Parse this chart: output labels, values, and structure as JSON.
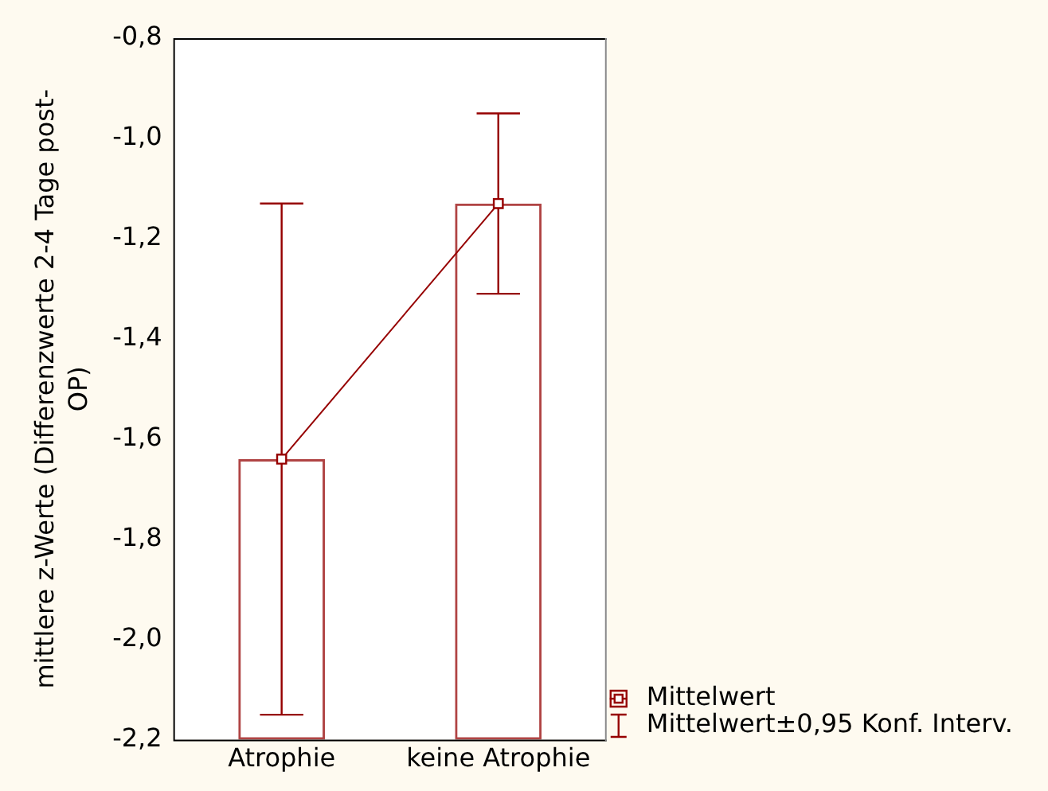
{
  "chart_data": {
    "type": "bar",
    "ylabel": "mittlere z-Werte (Differenzwerte 2-4 Tage post-OP)",
    "categories": [
      "Atrophie",
      "keine Atrophie"
    ],
    "series": [
      {
        "type": "line",
        "name": "Mittelwert",
        "color": "#960000",
        "values": [
          -1.64,
          -1.13
        ],
        "marker": "none"
      },
      {
        "type": "scatter",
        "name": "Mittelwert±0,95 Konf. Interv.",
        "color": "#960000",
        "values": [
          -1.64,
          -1.13
        ],
        "errors": [
          0.51,
          0.18
        ],
        "marker": "square"
      },
      {
        "type": "bar",
        "color": "#b04444",
        "values": [
          0.56,
          1.07
        ],
        "base": [
          -2.2,
          -2.2
        ]
      }
    ],
    "ylim": [
      -2.2,
      -0.8
    ],
    "yticks": [
      {
        "value": -2.2,
        "label": "-2,2"
      },
      {
        "value": -2.0,
        "label": "-2,0"
      },
      {
        "value": -1.8,
        "label": "-1,8"
      },
      {
        "value": -1.6,
        "label": "-1,6"
      },
      {
        "value": -1.4,
        "label": "-1,4"
      },
      {
        "value": -1.2,
        "label": "-1,2"
      },
      {
        "value": -1.0,
        "label": "-1,0"
      },
      {
        "value": -0.8,
        "label": "-0,8"
      }
    ],
    "legend": "bottom right"
  }
}
